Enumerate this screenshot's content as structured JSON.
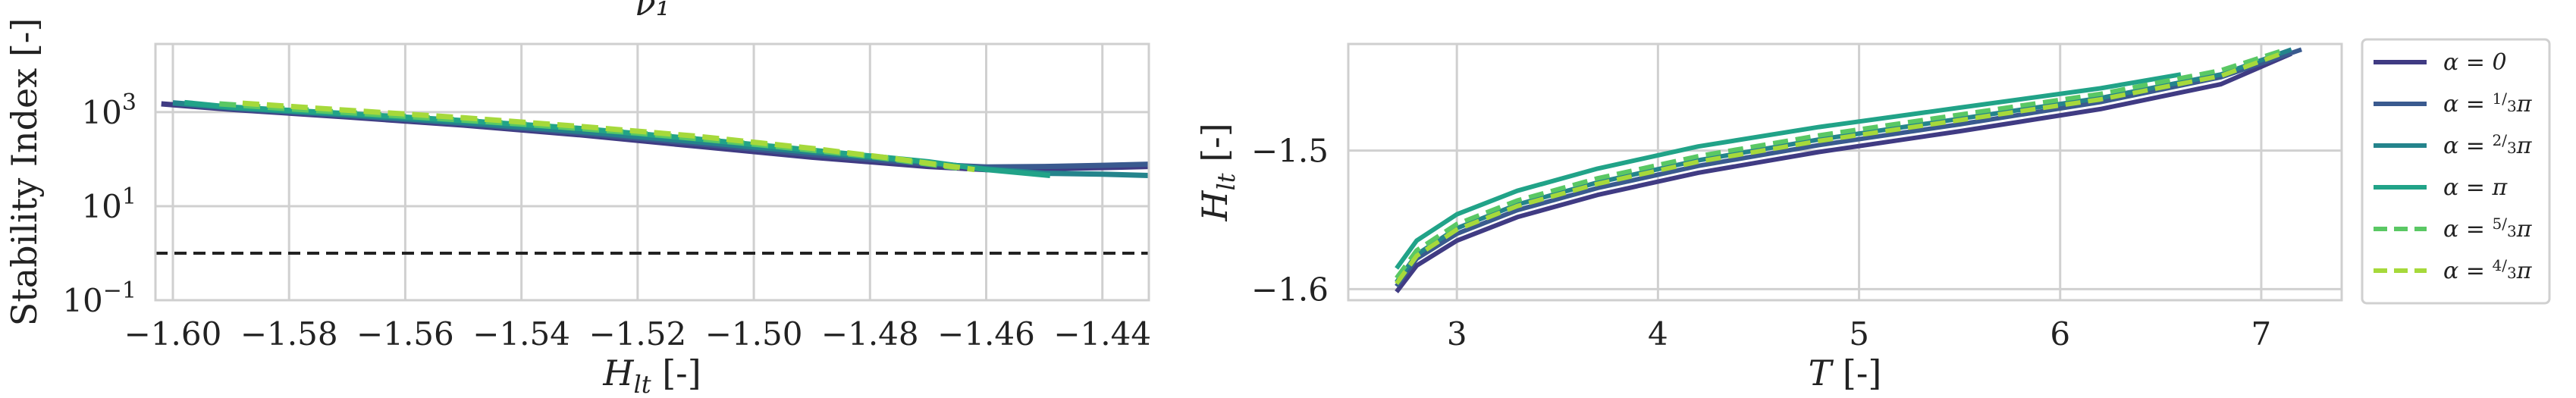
{
  "colors": {
    "grid": "#d0d0d0",
    "frame": "#cfcfcf",
    "reference_line": "#222222"
  },
  "chart_data": [
    {
      "type": "line",
      "title": "ν₁",
      "xlabel": "H_lt [-]",
      "ylabel": "Stability Index [-]",
      "xlim": [
        -1.603,
        -1.432
      ],
      "ylim_log10": [
        -1.0,
        4.45
      ],
      "y_scale": "log",
      "grid": true,
      "x_ticks": [
        -1.6,
        -1.58,
        -1.56,
        -1.54,
        -1.52,
        -1.5,
        -1.48,
        -1.46,
        -1.44
      ],
      "x_tick_labels": [
        "−1.60",
        "−1.58",
        "−1.56",
        "−1.54",
        "−1.52",
        "−1.50",
        "−1.48",
        "−1.46",
        "−1.44"
      ],
      "y_ticks": [
        0.1,
        10,
        1000
      ],
      "y_tick_labels": [
        {
          "base": "10",
          "exp": "−1"
        },
        {
          "base": "10",
          "exp": "1"
        },
        {
          "base": "10",
          "exp": "3"
        }
      ],
      "reference_line": {
        "y": 1,
        "style": "dashed"
      },
      "series": [
        {
          "name": "α = 0",
          "color": "#403b83",
          "dash": "solid",
          "x": [
            -1.602,
            -1.59,
            -1.57,
            -1.55,
            -1.53,
            -1.51,
            -1.49,
            -1.47,
            -1.46,
            -1.45,
            -1.44,
            -1.432
          ],
          "y": [
            1500,
            1150,
            790,
            530,
            330,
            190,
            110,
            70,
            60,
            63,
            66,
            70
          ]
        },
        {
          "name": "α = ⅓π",
          "color": "#3a5a8f",
          "dash": "solid",
          "x": [
            -1.6,
            -1.59,
            -1.57,
            -1.55,
            -1.53,
            -1.51,
            -1.49,
            -1.47,
            -1.46,
            -1.45,
            -1.44,
            -1.432
          ],
          "y": [
            1550,
            1200,
            840,
            570,
            360,
            215,
            125,
            78,
            68,
            70,
            74,
            78
          ]
        },
        {
          "name": "α = ⅔π",
          "color": "#24848c",
          "dash": "solid",
          "x": [
            -1.6,
            -1.59,
            -1.57,
            -1.55,
            -1.53,
            -1.51,
            -1.49,
            -1.47,
            -1.46,
            -1.45,
            -1.44,
            -1.432
          ],
          "y": [
            1580,
            1250,
            880,
            600,
            390,
            235,
            140,
            85,
            62,
            50,
            48,
            45
          ]
        },
        {
          "name": "α = π",
          "color": "#21a388",
          "dash": "solid",
          "x": [
            -1.598,
            -1.59,
            -1.57,
            -1.55,
            -1.53,
            -1.51,
            -1.49,
            -1.47,
            -1.46,
            -1.449
          ],
          "y": [
            1600,
            1280,
            930,
            660,
            450,
            270,
            155,
            88,
            60,
            45
          ]
        },
        {
          "name": "α = ⁵⁄₃π",
          "color": "#5ac864",
          "dash": "dashed",
          "x": [
            -1.592,
            -1.58,
            -1.56,
            -1.54,
            -1.52,
            -1.5,
            -1.48,
            -1.465
          ],
          "y": [
            1500,
            1180,
            820,
            560,
            360,
            210,
            115,
            65
          ]
        },
        {
          "name": "α = ⁴⁄₃π",
          "color": "#a6d93b",
          "dash": "dashed",
          "x": [
            -1.588,
            -1.57,
            -1.55,
            -1.53,
            -1.51,
            -1.49,
            -1.475,
            -1.462
          ],
          "y": [
            1550,
            1100,
            760,
            500,
            310,
            170,
            100,
            60
          ]
        }
      ]
    },
    {
      "type": "line",
      "title": "",
      "xlabel": "T [-]",
      "ylabel": "H_lt [-]",
      "xlim": [
        2.46,
        7.4
      ],
      "ylim": [
        -1.608,
        -1.423
      ],
      "grid": true,
      "x_ticks": [
        3,
        4,
        5,
        6,
        7
      ],
      "x_tick_labels": [
        "3",
        "4",
        "5",
        "6",
        "7"
      ],
      "y_ticks": [
        -1.5,
        -1.6
      ],
      "y_tick_labels": [
        "−1.5",
        "−1.6"
      ],
      "series": [
        {
          "name": "α = 0",
          "color": "#403b83",
          "dash": "solid",
          "x": [
            2.7,
            2.8,
            3.0,
            3.3,
            3.7,
            4.2,
            4.8,
            5.5,
            6.2,
            6.8,
            7.15
          ],
          "y": [
            -1.602,
            -1.583,
            -1.565,
            -1.548,
            -1.532,
            -1.516,
            -1.501,
            -1.486,
            -1.47,
            -1.452,
            -1.43
          ]
        },
        {
          "name": "α = ⅓π",
          "color": "#3a5a8f",
          "dash": "solid",
          "x": [
            2.7,
            2.8,
            3.0,
            3.3,
            3.7,
            4.2,
            4.8,
            5.5,
            6.2,
            6.8,
            7.2
          ],
          "y": [
            -1.598,
            -1.578,
            -1.56,
            -1.543,
            -1.527,
            -1.511,
            -1.496,
            -1.481,
            -1.465,
            -1.447,
            -1.427
          ]
        },
        {
          "name": "α = ⅔π",
          "color": "#24848c",
          "dash": "solid",
          "x": [
            2.7,
            2.8,
            3.0,
            3.3,
            3.7,
            4.2,
            4.8,
            5.5,
            6.2,
            6.8,
            7.15
          ],
          "y": [
            -1.595,
            -1.575,
            -1.556,
            -1.539,
            -1.523,
            -1.507,
            -1.492,
            -1.477,
            -1.462,
            -1.445,
            -1.427
          ]
        },
        {
          "name": "α = π",
          "color": "#21a388",
          "dash": "solid",
          "x": [
            2.7,
            2.8,
            3.0,
            3.3,
            3.7,
            4.2,
            4.8,
            5.5,
            6.2,
            6.6
          ],
          "y": [
            -1.585,
            -1.565,
            -1.546,
            -1.529,
            -1.513,
            -1.497,
            -1.483,
            -1.469,
            -1.455,
            -1.445
          ]
        },
        {
          "name": "α = ⁵⁄₃π",
          "color": "#5ac864",
          "dash": "dashed",
          "x": [
            2.7,
            2.8,
            3.0,
            3.3,
            3.7,
            4.2,
            4.8,
            5.5,
            6.2,
            6.8,
            7.1
          ],
          "y": [
            -1.592,
            -1.572,
            -1.553,
            -1.536,
            -1.52,
            -1.504,
            -1.489,
            -1.474,
            -1.459,
            -1.442,
            -1.428
          ]
        },
        {
          "name": "α = ⁴⁄₃π",
          "color": "#a6d93b",
          "dash": "dashed",
          "x": [
            2.7,
            2.8,
            3.0,
            3.3,
            3.7,
            4.2,
            4.8,
            5.5,
            6.2,
            6.8,
            7.1
          ],
          "y": [
            -1.596,
            -1.576,
            -1.557,
            -1.54,
            -1.524,
            -1.508,
            -1.493,
            -1.478,
            -1.463,
            -1.446,
            -1.43
          ]
        }
      ]
    }
  ],
  "legend": {
    "placement": "outside-right",
    "entries": [
      {
        "label_main": "α = 0",
        "frac": null,
        "suffix": "",
        "color": "#403b83",
        "dash": "solid"
      },
      {
        "label_main": "α = ",
        "frac": {
          "num": "1",
          "den": "3"
        },
        "suffix": "π",
        "color": "#3a5a8f",
        "dash": "solid"
      },
      {
        "label_main": "α = ",
        "frac": {
          "num": "2",
          "den": "3"
        },
        "suffix": "π",
        "color": "#24848c",
        "dash": "solid"
      },
      {
        "label_main": "α = π",
        "frac": null,
        "suffix": "",
        "color": "#21a388",
        "dash": "solid"
      },
      {
        "label_main": "α = ",
        "frac": {
          "num": "5",
          "den": "3"
        },
        "suffix": "π",
        "color": "#5ac864",
        "dash": "dashed"
      },
      {
        "label_main": "α = ",
        "frac": {
          "num": "4",
          "den": "3"
        },
        "suffix": "π",
        "color": "#a6d93b",
        "dash": "dashed"
      }
    ]
  }
}
